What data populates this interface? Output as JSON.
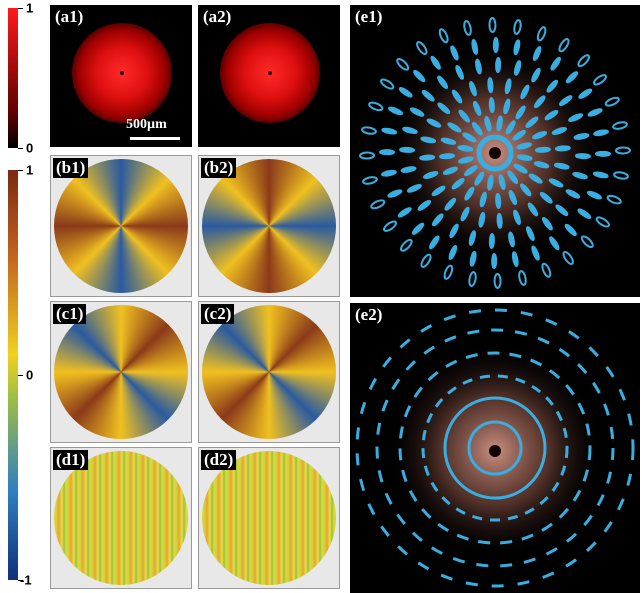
{
  "panels": {
    "a1": "(a1)",
    "a2": "(a2)",
    "b1": "(b1)",
    "b2": "(b2)",
    "c1": "(c1)",
    "c2": "(c2)",
    "d1": "(d1)",
    "d2": "(d2)",
    "e1": "(e1)",
    "e2": "(e2)"
  },
  "scale_bar": "500µm",
  "colorbars": [
    {
      "ticks": [
        1,
        0
      ]
    },
    {
      "ticks": [
        1,
        0,
        -1
      ]
    }
  ]
}
